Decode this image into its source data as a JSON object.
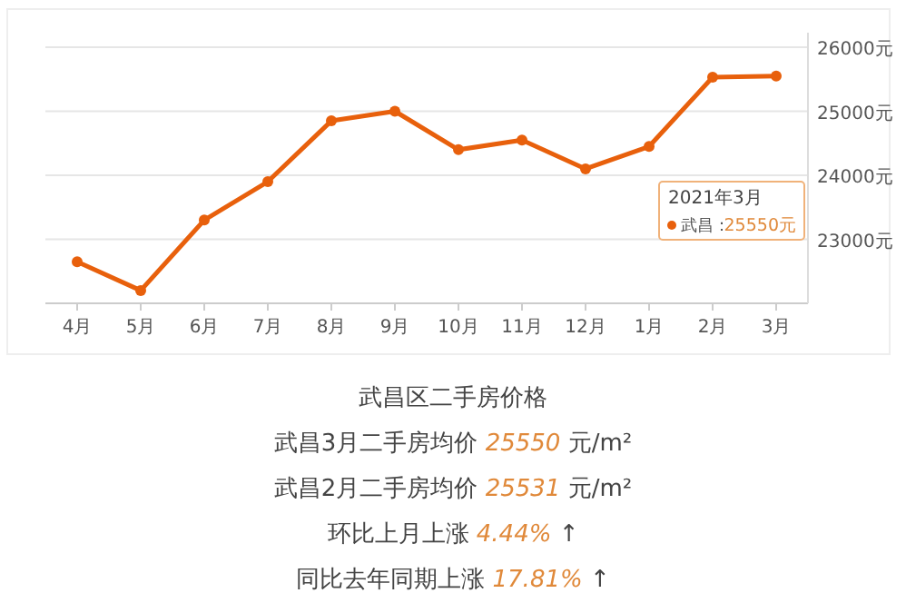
{
  "chart_data": {
    "type": "line",
    "title": "武昌区二手房价格",
    "categories": [
      "4月",
      "5月",
      "6月",
      "7月",
      "8月",
      "9月",
      "10月",
      "11月",
      "12月",
      "1月",
      "2月",
      "3月"
    ],
    "series": [
      {
        "name": "武昌：",
        "color": "#e8600c",
        "values": [
          22650,
          22200,
          23300,
          23900,
          24850,
          25000,
          24400,
          24550,
          24100,
          24450,
          25531,
          25550
        ]
      }
    ],
    "ylim": [
      22000,
      26000
    ],
    "yticks": [
      {
        "value": 23000,
        "label": "23000元"
      },
      {
        "value": 24000,
        "label": "24000元"
      },
      {
        "value": 25000,
        "label": "25000元"
      },
      {
        "value": 26000,
        "label": "26000元"
      }
    ],
    "grid": "y",
    "legend": "right",
    "marker": "circle",
    "line_style": "solid",
    "annotations": [
      "2021年3月",
      "25550元",
      "武昌3月二手房均价 25550 元/m²",
      "武昌2月二手房均价 25531 元/m²",
      "环比上月上涨 4.44% ↑",
      "同比去年同期上涨 17.81% ↑"
    ]
  }
}
